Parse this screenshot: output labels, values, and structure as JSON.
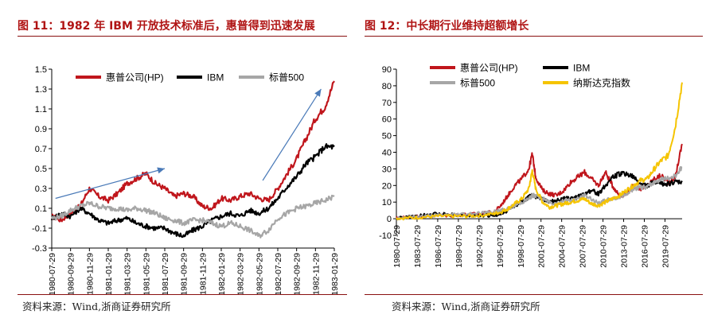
{
  "figures": [
    {
      "title": "图 11：1982 年 IBM 开放技术标准后，惠普得到迅速发展",
      "source": "资料来源：Wind,浙商证券研究所"
    },
    {
      "title": "图 12：中长期行业维持超额增长",
      "source": "资料来源：Wind,浙商证券研究所"
    }
  ],
  "chart_data": [
    {
      "type": "line",
      "title": "",
      "xlabel": "",
      "ylabel": "",
      "ylim": [
        -0.3,
        1.5
      ],
      "yticks": [
        "-0.3",
        "-0.1",
        "0.1",
        "0.3",
        "0.5",
        "0.7",
        "0.9",
        "1.1",
        "1.3",
        "1.5"
      ],
      "xticks": [
        "1980-07-29",
        "1980-09-29",
        "1980-11-29",
        "1981-01-29",
        "1981-03-29",
        "1981-05-29",
        "1981-07-29",
        "1981-09-29",
        "1981-11-29",
        "1982-01-29",
        "1982-03-29",
        "1982-05-29",
        "1982-07-29",
        "1982-09-29",
        "1982-11-29",
        "1983-01-29"
      ],
      "x": [
        0,
        0.5,
        1,
        1.5,
        2,
        2.5,
        3,
        3.5,
        4,
        4.5,
        5,
        5.5,
        6,
        6.5,
        7,
        7.5,
        8,
        8.5,
        9,
        9.5,
        10,
        10.5,
        11,
        11.5,
        12,
        12.5,
        13,
        13.5,
        14,
        14.5,
        15
      ],
      "legend_position": "top",
      "series": [
        {
          "name": "惠普公司(HP)",
          "color": "#c0161c",
          "values": [
            0.02,
            -0.02,
            0.05,
            0.12,
            0.3,
            0.22,
            0.18,
            0.25,
            0.35,
            0.4,
            0.45,
            0.35,
            0.3,
            0.22,
            0.25,
            0.22,
            0.12,
            0.1,
            0.2,
            0.18,
            0.22,
            0.25,
            0.2,
            0.18,
            0.3,
            0.45,
            0.6,
            0.8,
            1.0,
            1.12,
            1.38
          ]
        },
        {
          "name": "IBM",
          "color": "#000000",
          "values": [
            0.0,
            0.05,
            0.02,
            0.1,
            0.05,
            -0.02,
            -0.05,
            -0.02,
            0.0,
            -0.05,
            -0.08,
            -0.1,
            -0.1,
            -0.15,
            -0.18,
            -0.12,
            -0.08,
            -0.02,
            0.02,
            0.05,
            0.02,
            0.08,
            0.05,
            0.1,
            0.2,
            0.32,
            0.42,
            0.55,
            0.62,
            0.72,
            0.72
          ]
        },
        {
          "name": "标普500",
          "color": "#a6a6a6",
          "values": [
            0.0,
            0.02,
            0.08,
            0.12,
            0.15,
            0.12,
            0.1,
            0.1,
            0.08,
            0.1,
            0.08,
            0.05,
            0.0,
            -0.02,
            -0.05,
            -0.02,
            -0.02,
            -0.05,
            -0.08,
            -0.05,
            -0.08,
            -0.12,
            -0.18,
            -0.12,
            0.0,
            0.05,
            0.1,
            0.12,
            0.15,
            0.18,
            0.22
          ]
        }
      ],
      "annotations": [
        {
          "type": "arrow",
          "from": [
            0.2,
            0.2
          ],
          "to": [
            6.0,
            0.5
          ],
          "color": "#4a7ab8"
        },
        {
          "type": "arrow",
          "from": [
            11.2,
            0.38
          ],
          "to": [
            14.3,
            1.3
          ],
          "color": "#4a7ab8"
        }
      ]
    },
    {
      "type": "line",
      "title": "",
      "xlabel": "",
      "ylabel": "",
      "ylim": [
        -10,
        90
      ],
      "yticks": [
        "-10",
        "0",
        "10",
        "20",
        "30",
        "40",
        "50",
        "60",
        "70",
        "80",
        "90"
      ],
      "xticks": [
        "1980-07-29",
        "1983-07-29",
        "1986-07-29",
        "1989-07-29",
        "1992-07-29",
        "1995-07-29",
        "1998-07-29",
        "2001-07-29",
        "2004-07-29",
        "2007-07-29",
        "2010-07-29",
        "2013-07-29",
        "2016-07-29",
        "2019-07-29"
      ],
      "x": [
        1980,
        1982,
        1984,
        1986,
        1988,
        1990,
        1992,
        1994,
        1995,
        1996,
        1997,
        1998,
        1999,
        1999.5,
        2000,
        2001,
        2002,
        2003,
        2004,
        2005,
        2006,
        2007,
        2008,
        2009,
        2010,
        2011,
        2012,
        2013,
        2014,
        2015,
        2016,
        2017,
        2018,
        2019,
        2020,
        2021
      ],
      "legend_position": "top",
      "series": [
        {
          "name": "惠普公司(HP)",
          "color": "#c0161c",
          "values": [
            0.5,
            1,
            1.5,
            2,
            2,
            2.5,
            3,
            4,
            8,
            14,
            20,
            24,
            30,
            39,
            25,
            17,
            15,
            14,
            17,
            22,
            25,
            28,
            24,
            20,
            28,
            20,
            14,
            15,
            20,
            18,
            20,
            24,
            26,
            22,
            25,
            45
          ]
        },
        {
          "name": "IBM",
          "color": "#000000",
          "values": [
            0.5,
            1,
            2,
            3,
            2.5,
            2,
            2,
            2,
            3,
            5,
            8,
            10,
            13,
            15,
            13,
            12,
            10,
            11,
            12,
            12,
            13,
            15,
            17,
            15,
            20,
            25,
            27,
            27,
            25,
            21,
            20,
            22,
            21,
            21,
            22,
            22
          ]
        },
        {
          "name": "标普500",
          "color": "#a6a6a6",
          "values": [
            0.5,
            1,
            1.5,
            2,
            2.5,
            3,
            3.5,
            4,
            5,
            6,
            8,
            10,
            12,
            14,
            14,
            12,
            10,
            9,
            11,
            11,
            12,
            14,
            12,
            9,
            11,
            12,
            13,
            15,
            18,
            19,
            19,
            22,
            24,
            24,
            26,
            31
          ]
        },
        {
          "name": "纳斯达克指数",
          "color": "#f5c400",
          "values": [
            0.3,
            0.5,
            1,
            1.5,
            1.5,
            1.5,
            2,
            3,
            4,
            6,
            9,
            12,
            18,
            29,
            18,
            10,
            7,
            8,
            9,
            10,
            11,
            12,
            9,
            8,
            10,
            12,
            14,
            17,
            20,
            23,
            24,
            30,
            35,
            38,
            55,
            82
          ]
        }
      ]
    }
  ]
}
